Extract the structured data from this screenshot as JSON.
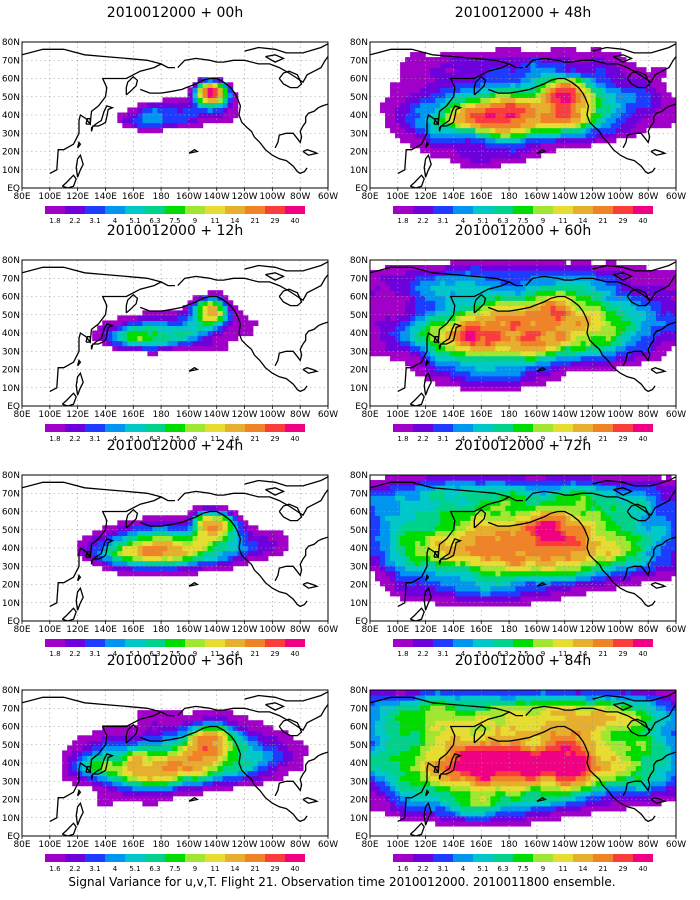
{
  "figure": {
    "caption": "Signal Variance for u,v,T. Flight 21. Observation time 2010012000. 2010011800 ensemble."
  },
  "panels": [
    {
      "title": "2010012000 + 00h",
      "lead": 0
    },
    {
      "title": "2010012000 + 48h",
      "lead": 48
    },
    {
      "title": "2010012000 + 12h",
      "lead": 12
    },
    {
      "title": "2010012000 + 60h",
      "lead": 60
    },
    {
      "title": "2010012000 + 24h",
      "lead": 24
    },
    {
      "title": "2010012000 + 72h",
      "lead": 72
    },
    {
      "title": "2010012000 + 36h",
      "lead": 36
    },
    {
      "title": "2010012000 + 84h",
      "lead": 84
    }
  ],
  "axes": {
    "lon_labels": [
      "80E",
      "100E",
      "120E",
      "140E",
      "160E",
      "180",
      "160W",
      "140W",
      "120W",
      "100W",
      "80W",
      "60W"
    ],
    "lat_labels": [
      "EQ",
      "10N",
      "20N",
      "30N",
      "40N",
      "50N",
      "60N",
      "70N",
      "80N"
    ]
  },
  "colorbar": {
    "levels": [
      "1.8",
      "2.2",
      "3.1",
      "4",
      "5.1",
      "6.3",
      "7.5",
      "9",
      "11",
      "14",
      "21",
      "29",
      "40"
    ],
    "levels_panel7": [
      "1.6",
      "2.2",
      "3.1",
      "4",
      "5.1",
      "6.3",
      "7.5",
      "9",
      "11",
      "14",
      "21",
      "29",
      "40"
    ],
    "colors": [
      "#a000c8",
      "#6e00dc",
      "#1e3cff",
      "#0096f0",
      "#00c8c8",
      "#00d28c",
      "#00dc00",
      "#a0e632",
      "#e6dc32",
      "#e6af2d",
      "#f08228",
      "#fa3c3c",
      "#f00082"
    ]
  }
}
